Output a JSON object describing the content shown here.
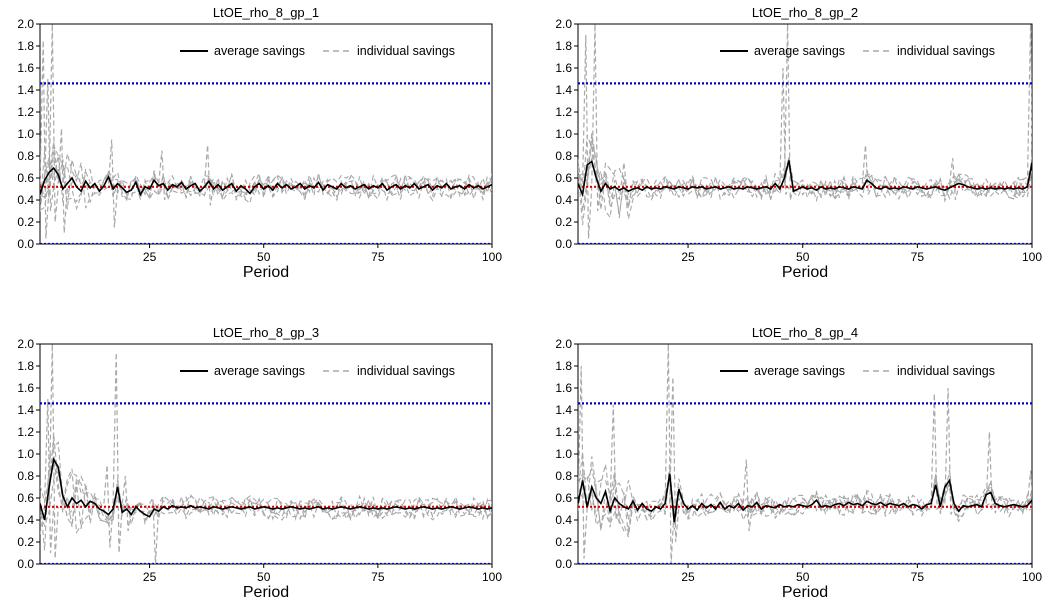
{
  "colors": {
    "average": "#000000",
    "individual": "#a8a8a8",
    "upper_ref": "#0000cc",
    "lower_ref": "#0000cc",
    "equilibrium": "#e00000"
  },
  "chart_data": [
    {
      "type": "line",
      "title": "LtOE_rho_8_gp_1",
      "xlabel": "Period",
      "ylabel": "",
      "xlim": [
        1,
        100
      ],
      "ylim": [
        0,
        2
      ],
      "xticks": [
        25,
        50,
        75,
        100
      ],
      "yticks": [
        0.0,
        0.2,
        0.4,
        0.6,
        0.8,
        1.0,
        1.2,
        1.4,
        1.6,
        1.8,
        2.0
      ],
      "reference_lines": [
        1.46,
        0.52,
        0.0
      ],
      "legend": [
        "average savings",
        "individual savings"
      ],
      "legend_position": "top-right",
      "grid": false,
      "average": [
        0.45,
        0.58,
        0.65,
        0.69,
        0.63,
        0.5,
        0.55,
        0.6,
        0.52,
        0.48,
        0.57,
        0.51,
        0.55,
        0.48,
        0.53,
        0.61,
        0.5,
        0.55,
        0.51,
        0.47,
        0.49,
        0.56,
        0.45,
        0.52,
        0.5,
        0.58,
        0.53,
        0.55,
        0.49,
        0.54,
        0.52,
        0.56,
        0.5,
        0.53,
        0.55,
        0.48,
        0.52,
        0.57,
        0.5,
        0.54,
        0.49,
        0.52,
        0.55,
        0.48,
        0.53,
        0.5,
        0.46,
        0.52,
        0.55,
        0.5,
        0.53,
        0.49,
        0.55,
        0.51,
        0.54,
        0.5,
        0.52,
        0.55,
        0.5,
        0.53,
        0.51,
        0.56,
        0.49,
        0.54,
        0.52,
        0.5,
        0.55,
        0.51,
        0.53,
        0.5,
        0.52,
        0.54,
        0.5,
        0.53,
        0.51,
        0.55,
        0.49,
        0.52,
        0.54,
        0.5,
        0.53,
        0.51,
        0.55,
        0.5,
        0.52,
        0.54,
        0.49,
        0.53,
        0.51,
        0.55,
        0.5,
        0.52,
        0.53,
        0.5,
        0.54,
        0.51,
        0.53,
        0.5,
        0.52,
        0.54
      ],
      "ind_spikes": [
        [
          2,
          1.85,
          0.05
        ],
        [
          4,
          2.0,
          0.2
        ],
        [
          3,
          1.5,
          0.3
        ],
        [
          6,
          1.05,
          0.1
        ],
        [
          17,
          0.95,
          0.15
        ],
        [
          28,
          0.85,
          0.4
        ],
        [
          38,
          0.9,
          0.35
        ]
      ]
    },
    {
      "type": "line",
      "title": "LtOE_rho_8_gp_2",
      "xlabel": "Period",
      "ylabel": "",
      "xlim": [
        1,
        100
      ],
      "ylim": [
        0,
        2
      ],
      "xticks": [
        25,
        50,
        75,
        100
      ],
      "yticks": [
        0.0,
        0.2,
        0.4,
        0.6,
        0.8,
        1.0,
        1.2,
        1.4,
        1.6,
        1.8,
        2.0
      ],
      "reference_lines": [
        1.46,
        0.52,
        0.0
      ],
      "legend": [
        "average savings",
        "individual savings"
      ],
      "legend_position": "top-right",
      "grid": false,
      "average": [
        0.55,
        0.45,
        0.72,
        0.75,
        0.6,
        0.48,
        0.55,
        0.5,
        0.52,
        0.49,
        0.51,
        0.48,
        0.5,
        0.51,
        0.49,
        0.52,
        0.5,
        0.51,
        0.5,
        0.52,
        0.51,
        0.5,
        0.52,
        0.51,
        0.5,
        0.52,
        0.51,
        0.52,
        0.5,
        0.51,
        0.52,
        0.5,
        0.51,
        0.52,
        0.5,
        0.51,
        0.5,
        0.52,
        0.51,
        0.5,
        0.51,
        0.52,
        0.5,
        0.55,
        0.5,
        0.6,
        0.76,
        0.48,
        0.5,
        0.52,
        0.5,
        0.51,
        0.49,
        0.52,
        0.5,
        0.51,
        0.5,
        0.52,
        0.51,
        0.5,
        0.52,
        0.51,
        0.5,
        0.58,
        0.55,
        0.51,
        0.5,
        0.52,
        0.5,
        0.51,
        0.5,
        0.52,
        0.51,
        0.5,
        0.52,
        0.51,
        0.5,
        0.51,
        0.52,
        0.5,
        0.49,
        0.51,
        0.53,
        0.55,
        0.54,
        0.52,
        0.51,
        0.5,
        0.51,
        0.5,
        0.51,
        0.5,
        0.51,
        0.5,
        0.51,
        0.5,
        0.51,
        0.5,
        0.52,
        0.74
      ],
      "ind_spikes": [
        [
          3,
          1.9,
          0.05
        ],
        [
          5,
          2.0,
          0.3
        ],
        [
          47,
          2.0,
          0.4
        ],
        [
          46,
          1.6,
          0.45
        ],
        [
          64,
          0.9,
          0.45
        ],
        [
          83,
          0.78,
          0.4
        ],
        [
          100,
          2.0,
          0.2
        ]
      ]
    },
    {
      "type": "line",
      "title": "LtOE_rho_8_gp_3",
      "xlabel": "Period",
      "ylabel": "",
      "xlim": [
        1,
        100
      ],
      "ylim": [
        0,
        2
      ],
      "xticks": [
        25,
        50,
        75,
        100
      ],
      "yticks": [
        0.0,
        0.2,
        0.4,
        0.6,
        0.8,
        1.0,
        1.2,
        1.4,
        1.6,
        1.8,
        2.0
      ],
      "reference_lines": [
        1.46,
        0.52,
        0.0
      ],
      "legend": [
        "average savings",
        "individual savings"
      ],
      "legend_position": "top-right",
      "grid": false,
      "average": [
        0.55,
        0.4,
        0.7,
        0.95,
        0.88,
        0.62,
        0.52,
        0.6,
        0.55,
        0.58,
        0.52,
        0.57,
        0.55,
        0.5,
        0.48,
        0.45,
        0.5,
        0.7,
        0.47,
        0.5,
        0.45,
        0.52,
        0.48,
        0.45,
        0.43,
        0.5,
        0.48,
        0.52,
        0.5,
        0.53,
        0.51,
        0.52,
        0.51,
        0.53,
        0.51,
        0.52,
        0.51,
        0.5,
        0.52,
        0.51,
        0.5,
        0.51,
        0.52,
        0.51,
        0.5,
        0.51,
        0.52,
        0.5,
        0.51,
        0.52,
        0.51,
        0.5,
        0.51,
        0.5,
        0.51,
        0.52,
        0.51,
        0.5,
        0.51,
        0.5,
        0.51,
        0.52,
        0.5,
        0.51,
        0.5,
        0.51,
        0.52,
        0.51,
        0.5,
        0.51,
        0.52,
        0.51,
        0.5,
        0.51,
        0.5,
        0.51,
        0.5,
        0.51,
        0.52,
        0.51,
        0.5,
        0.51,
        0.5,
        0.51,
        0.52,
        0.51,
        0.5,
        0.51,
        0.5,
        0.51,
        0.52,
        0.51,
        0.5,
        0.51,
        0.52,
        0.51,
        0.5,
        0.51,
        0.5,
        0.51
      ],
      "ind_spikes": [
        [
          4,
          2.0,
          0.05
        ],
        [
          3,
          1.5,
          0.1
        ],
        [
          18,
          1.92,
          0.1
        ],
        [
          16,
          0.9,
          0.15
        ],
        [
          26,
          0.6,
          0.0
        ],
        [
          20,
          0.8,
          0.3
        ]
      ]
    },
    {
      "type": "line",
      "title": "LtOE_rho_8_gp_4",
      "xlabel": "Period",
      "ylabel": "",
      "xlim": [
        1,
        100
      ],
      "ylim": [
        0,
        2
      ],
      "xticks": [
        25,
        50,
        75,
        100
      ],
      "yticks": [
        0.0,
        0.2,
        0.4,
        0.6,
        0.8,
        1.0,
        1.2,
        1.4,
        1.6,
        1.8,
        2.0
      ],
      "reference_lines": [
        1.46,
        0.52,
        0.0
      ],
      "legend": [
        "average savings",
        "individual savings"
      ],
      "legend_position": "top-right",
      "grid": false,
      "average": [
        0.55,
        0.76,
        0.52,
        0.7,
        0.6,
        0.55,
        0.66,
        0.48,
        0.6,
        0.55,
        0.52,
        0.5,
        0.57,
        0.49,
        0.55,
        0.5,
        0.48,
        0.52,
        0.5,
        0.55,
        0.82,
        0.38,
        0.68,
        0.55,
        0.5,
        0.53,
        0.49,
        0.55,
        0.51,
        0.54,
        0.5,
        0.56,
        0.5,
        0.53,
        0.51,
        0.55,
        0.49,
        0.53,
        0.52,
        0.56,
        0.5,
        0.53,
        0.52,
        0.51,
        0.54,
        0.52,
        0.53,
        0.52,
        0.54,
        0.53,
        0.52,
        0.54,
        0.58,
        0.52,
        0.53,
        0.52,
        0.54,
        0.55,
        0.53,
        0.56,
        0.54,
        0.55,
        0.53,
        0.57,
        0.55,
        0.54,
        0.56,
        0.53,
        0.55,
        0.54,
        0.53,
        0.55,
        0.52,
        0.54,
        0.53,
        0.5,
        0.54,
        0.55,
        0.72,
        0.52,
        0.7,
        0.76,
        0.55,
        0.48,
        0.53,
        0.52,
        0.53,
        0.54,
        0.52,
        0.63,
        0.65,
        0.55,
        0.53,
        0.52,
        0.53,
        0.54,
        0.53,
        0.52,
        0.53,
        0.58
      ],
      "ind_spikes": [
        [
          2,
          1.8,
          0.05
        ],
        [
          9,
          1.45,
          0.4
        ],
        [
          21,
          2.0,
          0.0
        ],
        [
          22,
          1.7,
          0.2
        ],
        [
          38,
          0.95,
          0.3
        ],
        [
          79,
          1.55,
          0.5
        ],
        [
          82,
          1.6,
          0.45
        ],
        [
          91,
          1.2,
          0.5
        ],
        [
          100,
          0.85,
          0.5
        ]
      ]
    }
  ]
}
